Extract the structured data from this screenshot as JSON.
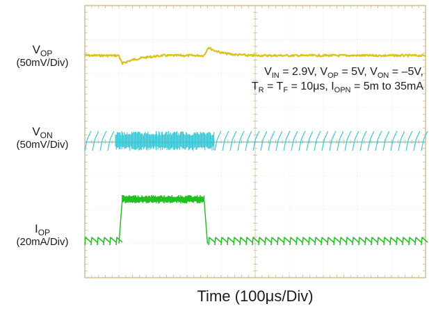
{
  "chart_data": {
    "type": "line",
    "title": "",
    "xlabel": "Time (100μs/Div)",
    "x_divisions": 10,
    "y_divisions": 8,
    "grid": true,
    "conditions": {
      "line1": [
        {
          "t": "V"
        },
        {
          "sub": "IN"
        },
        {
          "t": " = 2.9V, V"
        },
        {
          "sub": "OP"
        },
        {
          "t": " = 5V, V"
        },
        {
          "sub": "ON"
        },
        {
          "t": " = –5V,"
        }
      ],
      "line2": [
        {
          "t": "T"
        },
        {
          "sub": "R"
        },
        {
          "t": " = T"
        },
        {
          "sub": "F"
        },
        {
          "t": " = 10μs, I"
        },
        {
          "sub": "OPN"
        },
        {
          "t": " = 5m to 35mA"
        }
      ]
    },
    "channels": [
      {
        "id": "VOP",
        "name_main": "V",
        "name_sub": "OP",
        "scale": "(50mV/Div)",
        "color": "#d9c21e"
      },
      {
        "id": "VON",
        "name_main": "V",
        "name_sub": "ON",
        "scale": "(50mV/Div)",
        "color": "#2ec5d6"
      },
      {
        "id": "IOP",
        "name_main": "I",
        "name_sub": "OP",
        "scale": "(20mA/Div)",
        "color": "#22c022"
      }
    ],
    "load_step": {
      "low_mA": 5,
      "high_mA": 35,
      "rise_start_div": 1.0,
      "rise_end_div": 1.1,
      "fall_start_div": 3.5,
      "fall_end_div": 3.6
    }
  }
}
